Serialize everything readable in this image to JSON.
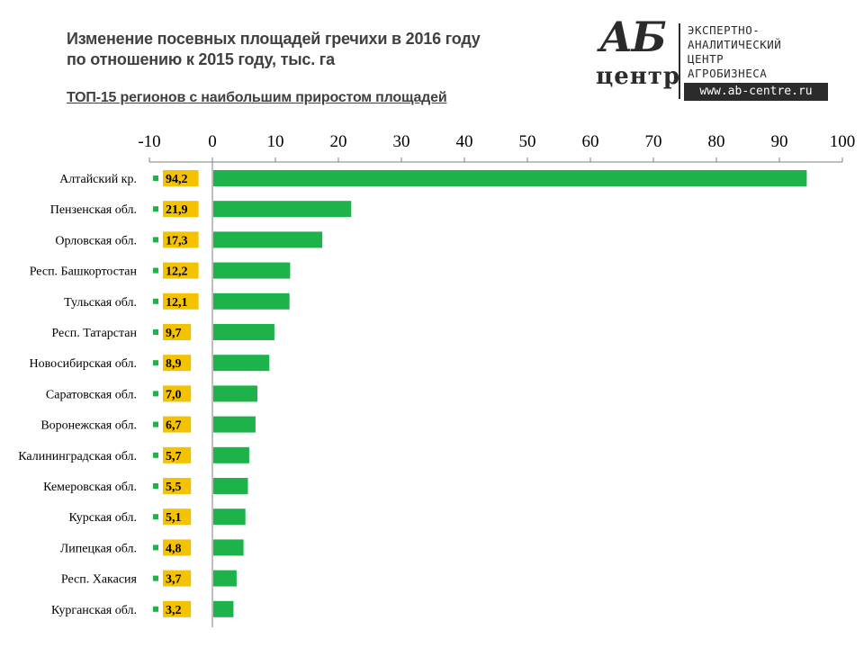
{
  "header": {
    "title_line1": "Изменение посевных площадей гречихи в 2016 году",
    "title_line2": "по отношению к 2015 году, тыс. га",
    "subtitle": "ТОП-15 регионов с наибольшим приростом площадей"
  },
  "logo": {
    "mark_letters": "АБ",
    "mark_word": "центр",
    "text_lines": [
      "ЭКСПЕРТНО-",
      "АНАЛИТИЧЕСКИЙ",
      "ЦЕНТР",
      "АГРОБИЗНЕСА"
    ],
    "url": "www.ab-centre.ru"
  },
  "colors": {
    "bar": "#1db34a",
    "label_bg": "#f5c200",
    "axis": "#7f7f7f",
    "text": "#404040"
  },
  "chart_data": {
    "type": "bar",
    "orientation": "horizontal",
    "categories": [
      "Алтайский кр.",
      "Пензенская обл.",
      "Орловская обл.",
      "Респ. Башкортостан",
      "Тульская обл.",
      "Респ. Татарстан",
      "Новосибирская обл.",
      "Саратовская обл.",
      "Воронежская обл.",
      "Калининградская обл.",
      "Кемеровская обл.",
      "Курская обл.",
      "Липецкая обл.",
      "Респ. Хакасия",
      "Курганская обл."
    ],
    "values": [
      94.2,
      21.9,
      17.3,
      12.2,
      12.1,
      9.7,
      8.9,
      7.0,
      6.7,
      5.7,
      5.5,
      5.1,
      4.8,
      3.7,
      3.2
    ],
    "value_labels": [
      "94,2",
      "21,9",
      "17,3",
      "12,2",
      "12,1",
      "9,7",
      "8,9",
      "7,0",
      "6,7",
      "5,7",
      "5,5",
      "5,1",
      "4,8",
      "3,7",
      "3,2"
    ],
    "xlim": [
      -10,
      100
    ],
    "x_ticks": [
      -10,
      0,
      10,
      20,
      30,
      40,
      50,
      60,
      70,
      80,
      90,
      100
    ],
    "tick_labels": [
      "-10",
      "0",
      "10",
      "20",
      "30",
      "40",
      "50",
      "60",
      "70",
      "80",
      "90",
      "100"
    ],
    "axis_position": "top",
    "grid": false
  }
}
